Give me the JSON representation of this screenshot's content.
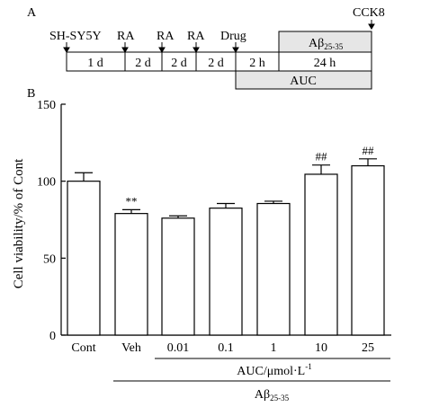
{
  "panels": {
    "a": "A",
    "b": "B"
  },
  "timeline": {
    "events": [
      "SH-SY5Y",
      "RA",
      "RA",
      "RA",
      "Drug",
      "CCK8"
    ],
    "segments": [
      "1 d",
      "2 d",
      "2 d",
      "2 d",
      "2 h",
      "24 h"
    ],
    "abeta_box": {
      "main": "Aβ",
      "sub": "25-35"
    },
    "auc_box": "AUC"
  },
  "chart_data": {
    "type": "bar",
    "categories": [
      "Cont",
      "Veh",
      "0.01",
      "0.1",
      "1",
      "10",
      "25"
    ],
    "values": [
      100,
      79,
      76,
      82.5,
      85.5,
      104.5,
      110
    ],
    "errors": [
      5.5,
      2.5,
      1.5,
      3,
      1.5,
      6,
      4.5
    ],
    "significance": [
      "",
      "**",
      "",
      "",
      "",
      "##",
      "##"
    ],
    "ylabel": "Cell viability/% of Cont",
    "ylim": [
      0,
      150
    ],
    "yticks": [
      0,
      50,
      100,
      150
    ],
    "group_label_1": {
      "text": "AUC/μmol·L",
      "sup": "-1"
    },
    "group_label_2": {
      "main": "Aβ",
      "sub": "25-35"
    },
    "colors": {
      "bar_fill": "#ffffff",
      "stroke": "#000000",
      "box_fill": "#e6e6e6"
    }
  }
}
